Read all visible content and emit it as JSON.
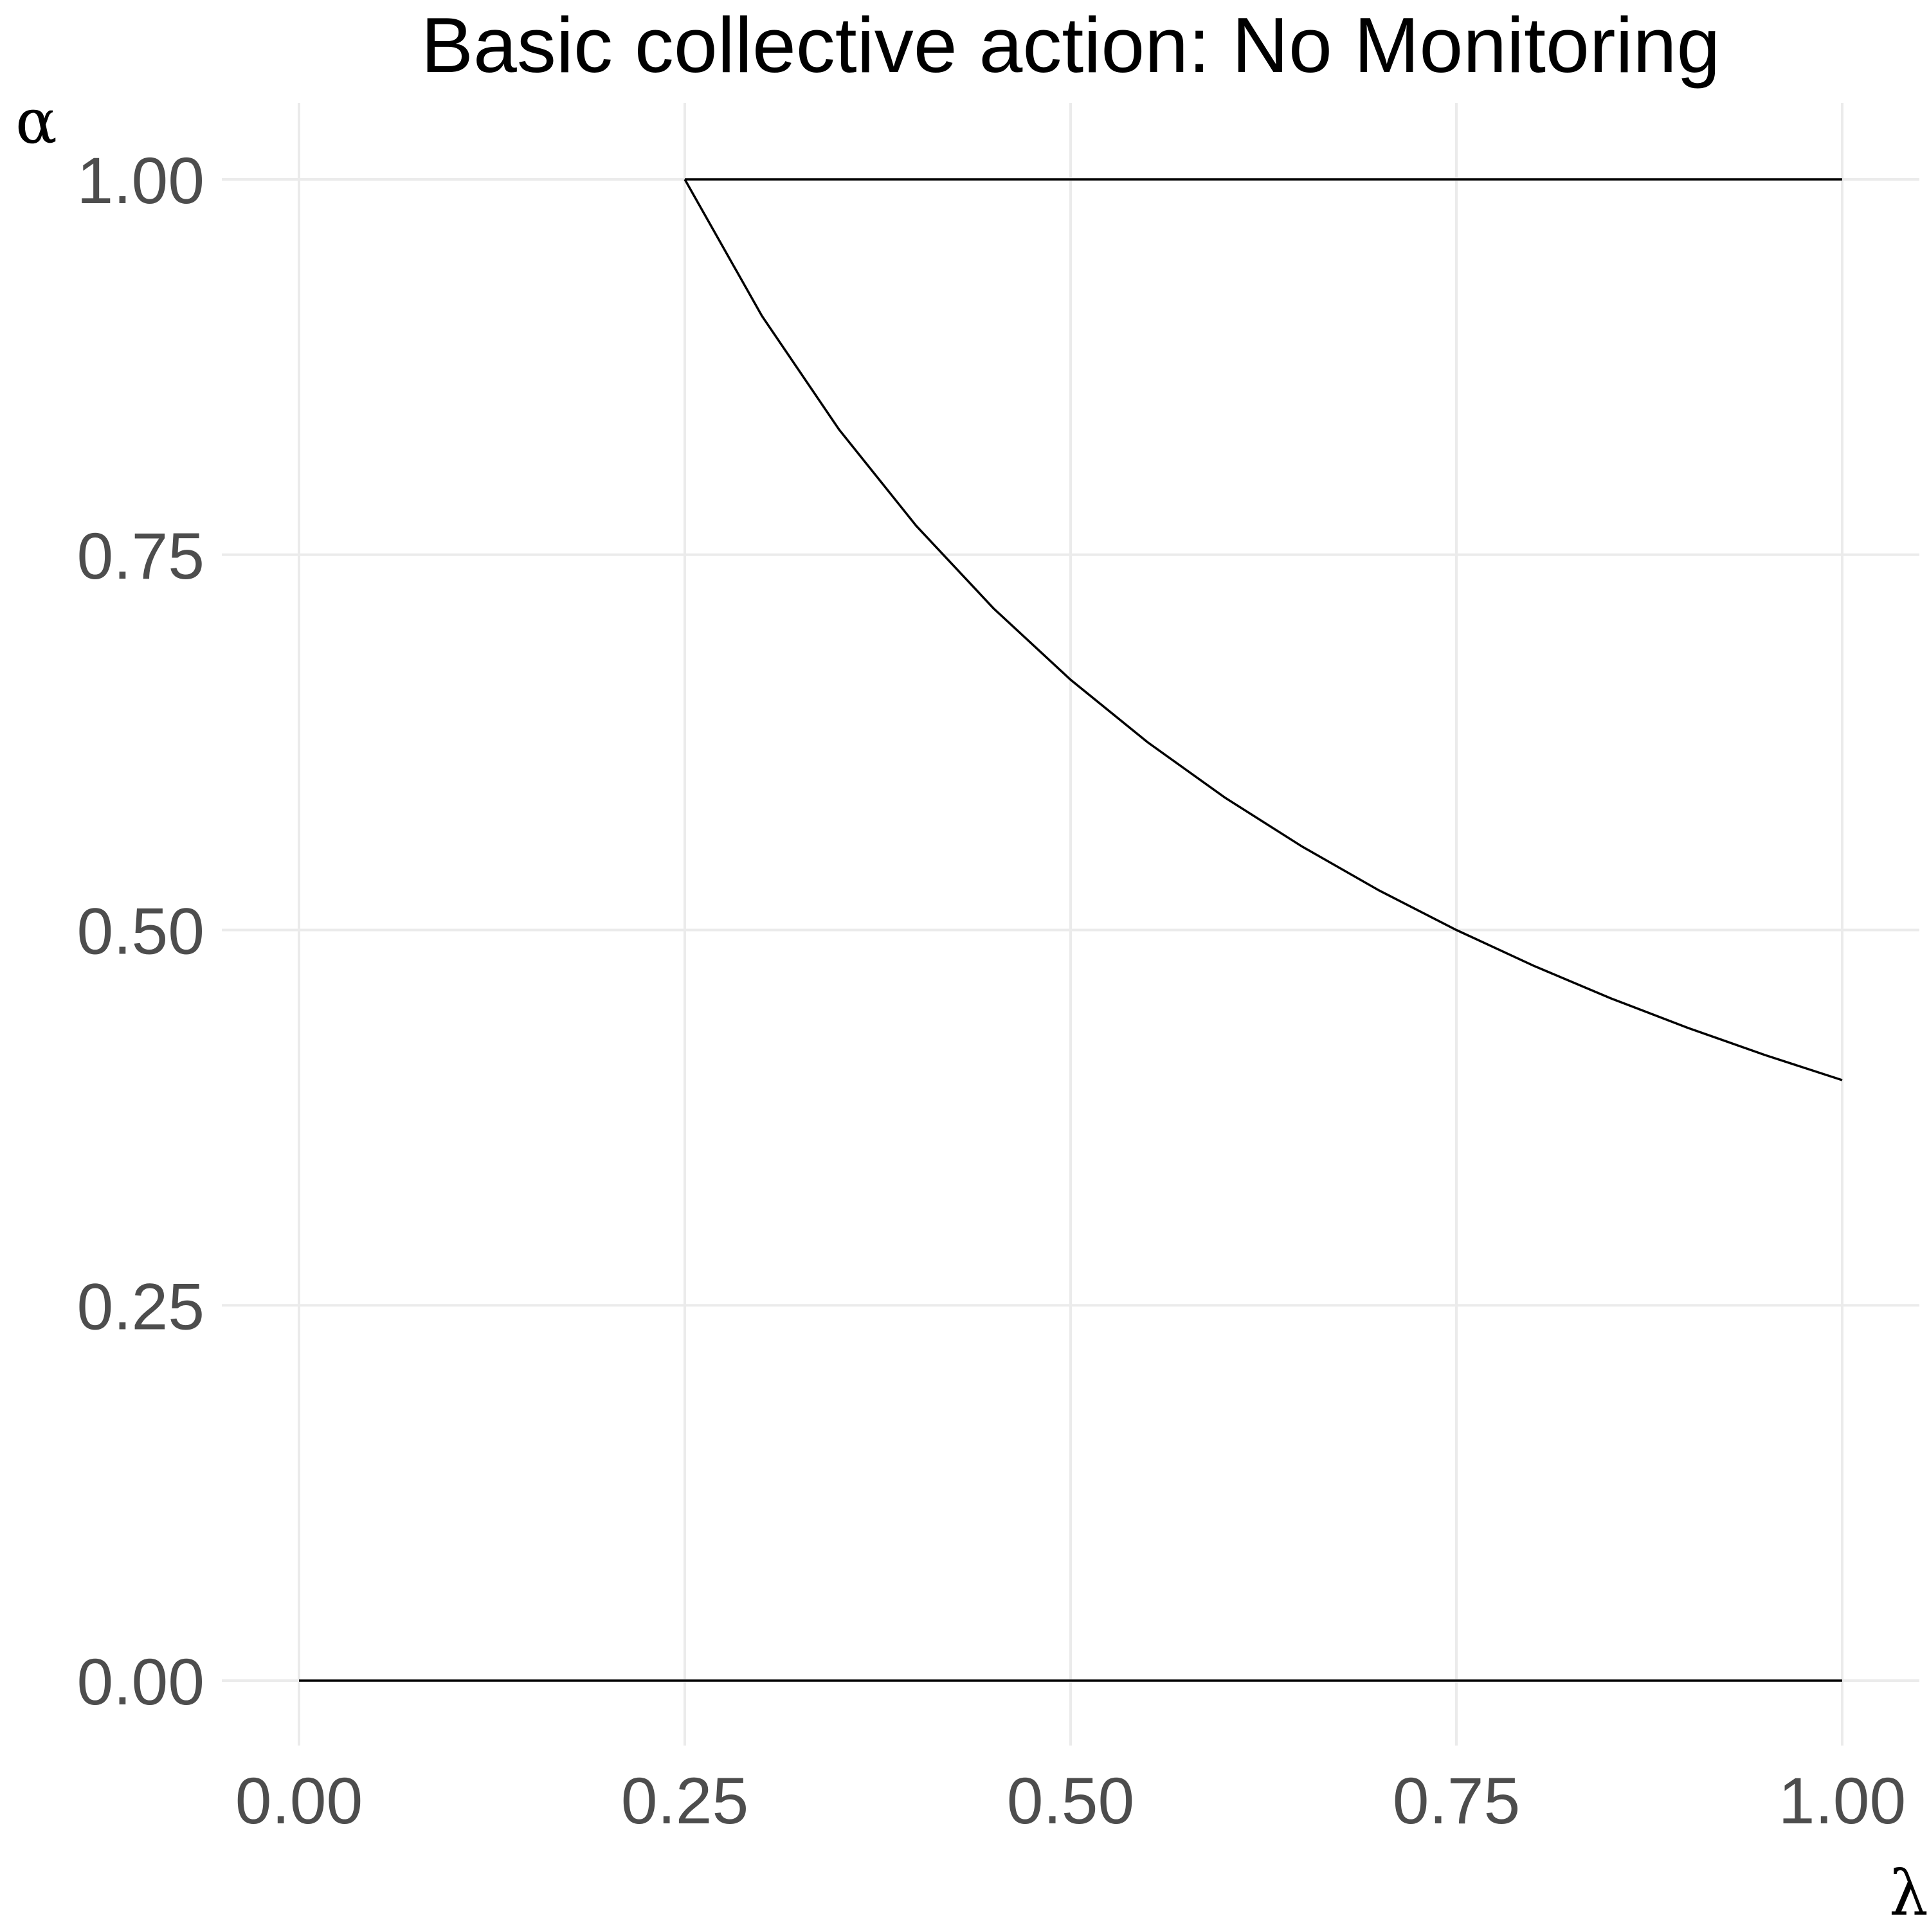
{
  "chart_data": {
    "type": "line",
    "title": "Basic collective action: No Monitoring",
    "xlabel": "λ",
    "ylabel": "α",
    "xlim": [
      0,
      1
    ],
    "ylim": [
      0,
      1
    ],
    "x_ticks": [
      0,
      0.25,
      0.5,
      0.75,
      1
    ],
    "y_ticks": [
      0,
      0.25,
      0.5,
      0.75,
      1
    ],
    "x_tick_labels": [
      "0.00",
      "0.25",
      "0.50",
      "0.75",
      "1.00"
    ],
    "y_tick_labels": [
      "0.00",
      "0.25",
      "0.50",
      "0.75",
      "1.00"
    ],
    "grid": true,
    "legend": "none",
    "line_color": "#000000",
    "grid_color": "#ebebeb",
    "series": [
      {
        "x": [
          0,
          1
        ],
        "y": [
          0,
          0
        ]
      },
      {
        "x": [
          0.25,
          1
        ],
        "y": [
          1,
          1
        ]
      },
      {
        "x": [
          0.25,
          0.3,
          0.35,
          0.4,
          0.45,
          0.5,
          0.55,
          0.6,
          0.65,
          0.7,
          0.75,
          0.8,
          0.85,
          0.9,
          0.95,
          1.0
        ],
        "y": [
          1.0,
          0.909,
          0.8333,
          0.7692,
          0.7143,
          0.6667,
          0.625,
          0.5882,
          0.5556,
          0.5263,
          0.5,
          0.4762,
          0.4545,
          0.4348,
          0.4167,
          0.4
        ]
      }
    ]
  }
}
